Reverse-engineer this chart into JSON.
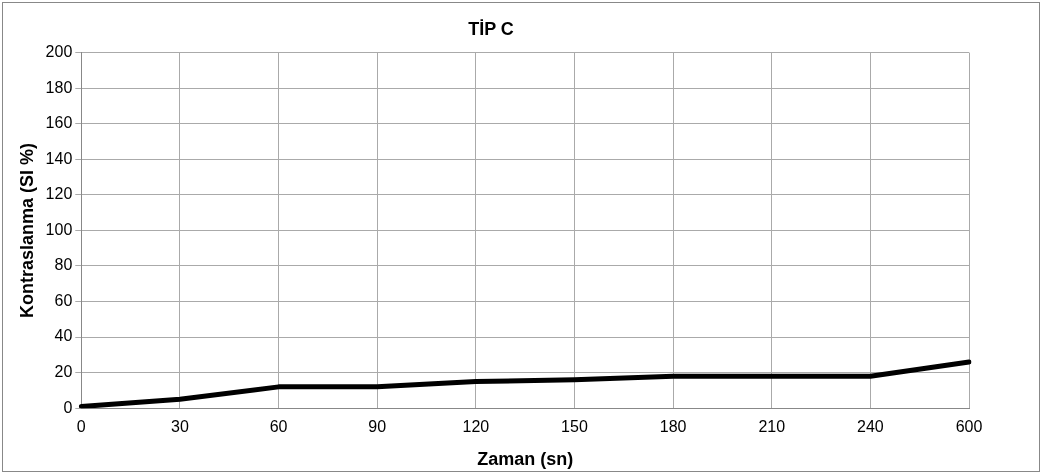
{
  "chart_data": {
    "type": "line",
    "title": "TİP C",
    "xlabel": "Zaman (sn)",
    "ylabel": "Kontraslanma (SI %)",
    "categories": [
      "0",
      "30",
      "60",
      "90",
      "120",
      "150",
      "180",
      "210",
      "240",
      "600"
    ],
    "series": [
      {
        "color": "#000000",
        "values": [
          1,
          5,
          12,
          12,
          15,
          16,
          18,
          18,
          18,
          26
        ]
      }
    ],
    "ylim": [
      0,
      200
    ],
    "yticks": [
      0,
      20,
      40,
      60,
      80,
      100,
      120,
      140,
      160,
      180,
      200
    ],
    "grid": true,
    "legend": false,
    "marker": "none",
    "line_style": "solid"
  }
}
